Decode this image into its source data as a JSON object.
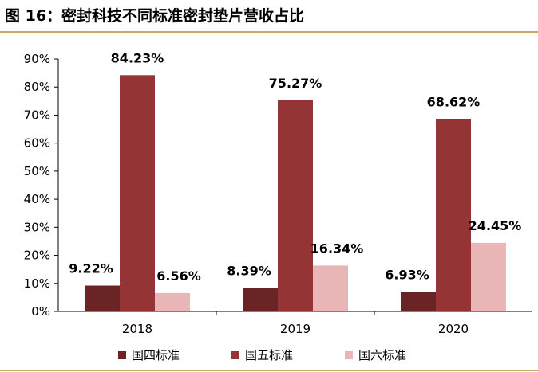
{
  "title": "图 16：密封科技不同标准密封垫片营收占比",
  "chart_data": {
    "type": "bar",
    "title": "图 16：密封科技不同标准密封垫片营收占比",
    "categories": [
      "2018",
      "2019",
      "2020"
    ],
    "series": [
      {
        "name": "国四标准",
        "values": [
          9.22,
          8.39,
          6.93
        ],
        "labels": [
          "9.22%",
          "8.39%",
          "6.93%"
        ],
        "color": "#6b2426"
      },
      {
        "name": "国五标准",
        "values": [
          84.23,
          75.27,
          68.62
        ],
        "labels": [
          "84.23%",
          "75.27%",
          "68.62%"
        ],
        "color": "#943434"
      },
      {
        "name": "国六标准",
        "values": [
          6.56,
          16.34,
          24.45
        ],
        "labels": [
          "6.56%",
          "16.34%",
          "24.45%"
        ],
        "color": "#e8b6b6"
      }
    ],
    "yticks": [
      "0%",
      "10%",
      "20%",
      "30%",
      "40%",
      "50%",
      "60%",
      "70%",
      "80%",
      "90%"
    ],
    "ylim": [
      0,
      90
    ],
    "xlabel": "",
    "ylabel": "",
    "grid": false,
    "legend": "bottom"
  }
}
